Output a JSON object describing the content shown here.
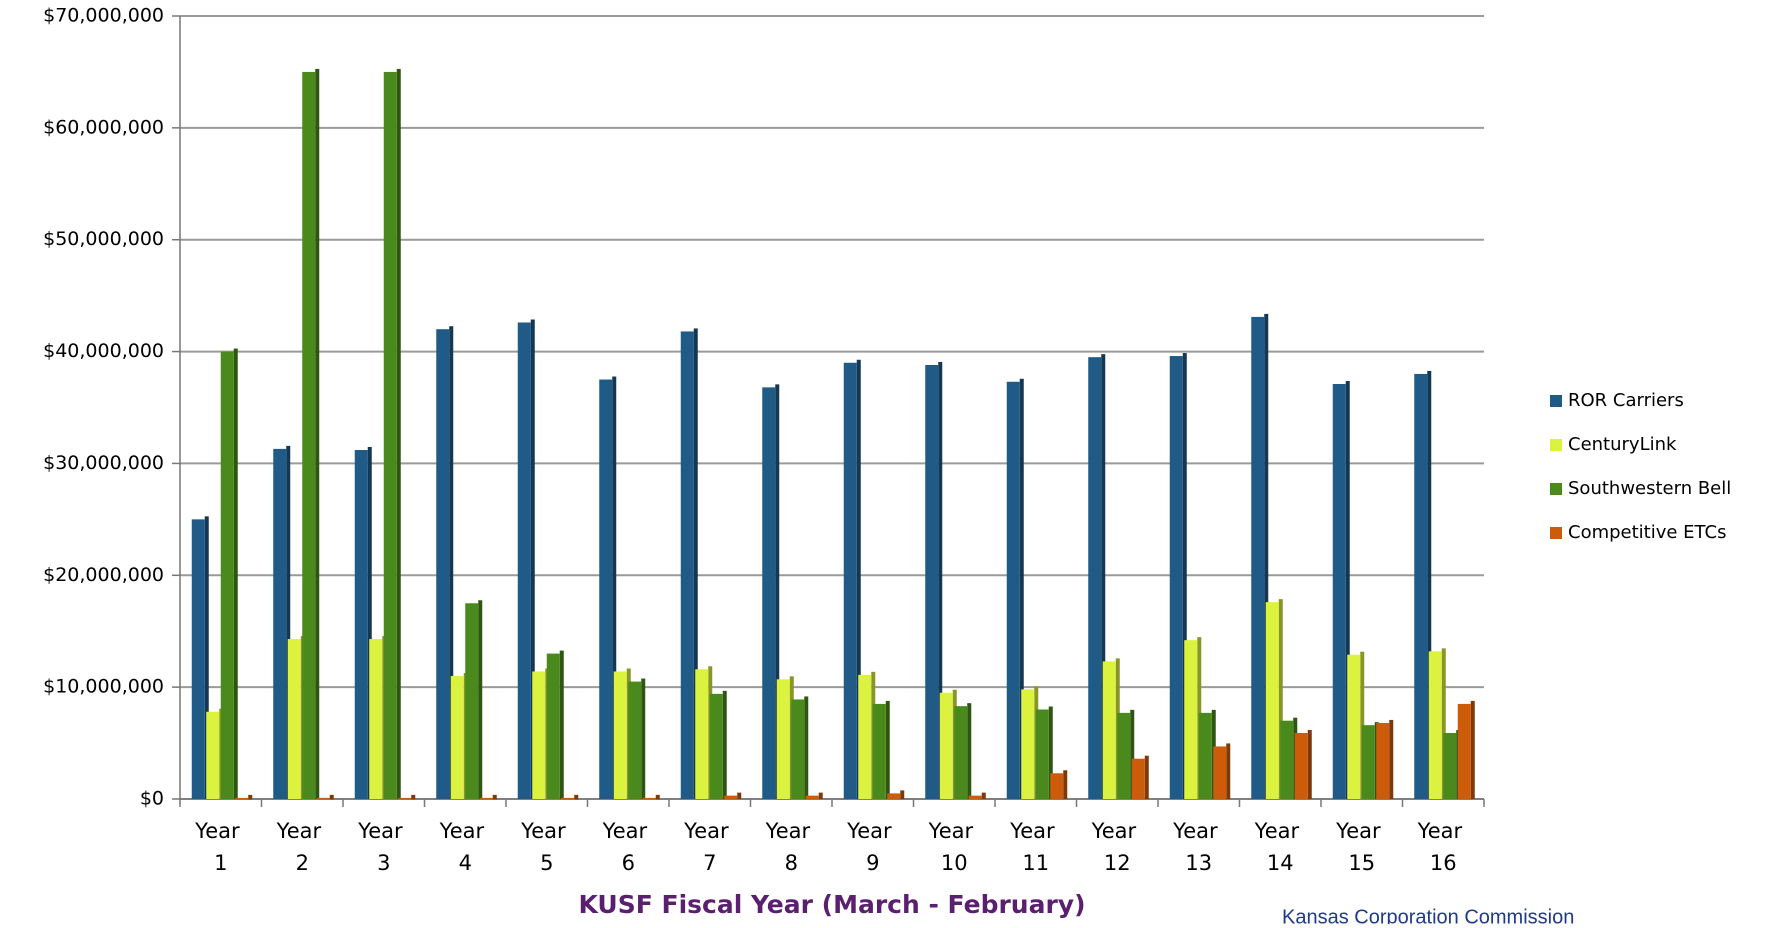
{
  "chart_data": {
    "type": "bar",
    "x_label": "KUSF Fiscal Year (March - February)",
    "footer": "Kansas Corporation Commission",
    "categories": [
      "Year 1",
      "Year 2",
      "Year 3",
      "Year 4",
      "Year 5",
      "Year 6",
      "Year 7",
      "Year 8",
      "Year 9",
      "Year 10",
      "Year 11",
      "Year 12",
      "Year 13",
      "Year 14",
      "Year 15",
      "Year 16"
    ],
    "series": [
      {
        "name": "ROR Carriers",
        "color": "#1f5b86",
        "values": [
          25000000,
          31300000,
          31200000,
          42000000,
          42600000,
          37500000,
          41800000,
          36800000,
          39000000,
          38800000,
          37300000,
          39500000,
          39600000,
          43100000,
          37100000,
          38000000
        ]
      },
      {
        "name": "CenturyLink",
        "color": "#dbf23f",
        "values": [
          7800000,
          14300000,
          14300000,
          11000000,
          11400000,
          11400000,
          11600000,
          10700000,
          11100000,
          9500000,
          9800000,
          12300000,
          14200000,
          17600000,
          12900000,
          13200000
        ]
      },
      {
        "name": "Southwestern Bell",
        "color": "#4a8a1c",
        "values": [
          40000000,
          65000000,
          65000000,
          17500000,
          13000000,
          10500000,
          9400000,
          8900000,
          8500000,
          8300000,
          8000000,
          7700000,
          7700000,
          7000000,
          6600000,
          5900000
        ]
      },
      {
        "name": "Competitive ETCs",
        "color": "#cc5c0a",
        "values": [
          100000,
          100000,
          100000,
          100000,
          100000,
          100000,
          300000,
          300000,
          500000,
          300000,
          2300000,
          3600000,
          4700000,
          5900000,
          6800000,
          8500000
        ]
      }
    ],
    "ylim": [
      0,
      70000000
    ],
    "yticks": [
      {
        "value": 0,
        "label": "$0"
      },
      {
        "value": 10000000,
        "label": "$10,000,000"
      },
      {
        "value": 20000000,
        "label": "$20,000,000"
      },
      {
        "value": 30000000,
        "label": "$30,000,000"
      },
      {
        "value": 40000000,
        "label": "$40,000,000"
      },
      {
        "value": 50000000,
        "label": "$50,000,000"
      },
      {
        "value": 60000000,
        "label": "$60,000,000"
      },
      {
        "value": 70000000,
        "label": "$70,000,000"
      }
    ],
    "grid": true,
    "legend": "right"
  }
}
